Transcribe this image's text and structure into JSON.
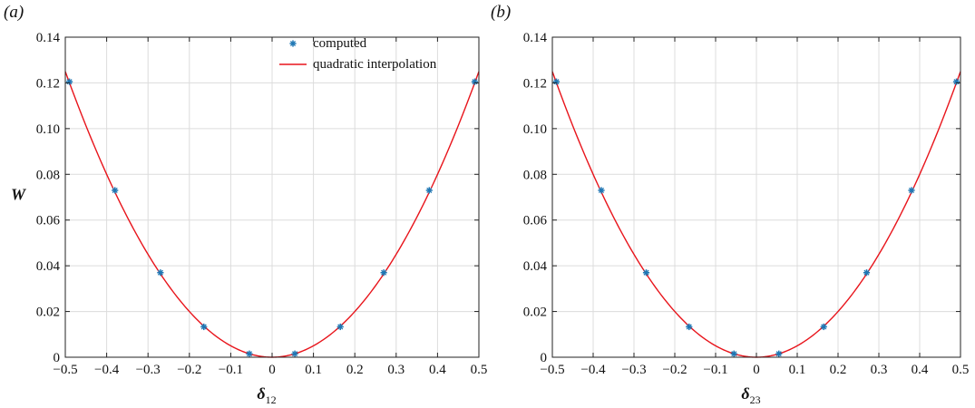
{
  "chart_data": [
    {
      "type": "scatter",
      "panel_label": "(a)",
      "xlabel": "δ",
      "xlabel_sub": "12",
      "ylabel": "W",
      "xlim": [
        -0.5,
        0.5
      ],
      "ylim": [
        0,
        0.14
      ],
      "xticks": [
        "−0.5",
        "−0.4",
        "−0.3",
        "−0.2",
        "−0.1",
        "0",
        "0.1",
        "0.2",
        "0.3",
        "0.4",
        "0.5"
      ],
      "yticks": [
        "0",
        "0.02",
        "0.04",
        "0.06",
        "0.08",
        "0.10",
        "0.12",
        "0.14"
      ],
      "grid": true,
      "legend": {
        "position": "top-right",
        "entries": [
          "computed",
          "quadratic interpolation"
        ]
      },
      "series": [
        {
          "name": "computed",
          "kind": "markers",
          "color": "#1f77b4",
          "x": [
            -0.49,
            -0.38,
            -0.27,
            -0.165,
            -0.055,
            0.055,
            0.165,
            0.27,
            0.38,
            0.49
          ],
          "y": [
            0.1205,
            0.073,
            0.037,
            0.0133,
            0.0015,
            0.0015,
            0.0133,
            0.037,
            0.073,
            0.1205
          ]
        },
        {
          "name": "quadratic interpolation",
          "kind": "line",
          "color": "#e8141b",
          "coefficient": 0.5
        }
      ]
    },
    {
      "type": "scatter",
      "panel_label": "(b)",
      "xlabel": "δ",
      "xlabel_sub": "23",
      "ylabel": "",
      "xlim": [
        -0.5,
        0.5
      ],
      "ylim": [
        0,
        0.14
      ],
      "xticks": [
        "−0.5",
        "−0.4",
        "−0.3",
        "−0.2",
        "−0.1",
        "0",
        "0.1",
        "0.2",
        "0.3",
        "0.4",
        "0.5"
      ],
      "yticks": [
        "0",
        "0.02",
        "0.04",
        "0.06",
        "0.08",
        "0.10",
        "0.12",
        "0.14"
      ],
      "grid": true,
      "legend": null,
      "series": [
        {
          "name": "computed",
          "kind": "markers",
          "color": "#1f77b4",
          "x": [
            -0.49,
            -0.38,
            -0.27,
            -0.165,
            -0.055,
            0.055,
            0.165,
            0.27,
            0.38,
            0.49
          ],
          "y": [
            0.1205,
            0.073,
            0.037,
            0.0133,
            0.0015,
            0.0015,
            0.0133,
            0.037,
            0.073,
            0.1205
          ]
        },
        {
          "name": "quadratic interpolation",
          "kind": "line",
          "color": "#e8141b",
          "coefficient": 0.5
        }
      ]
    }
  ]
}
